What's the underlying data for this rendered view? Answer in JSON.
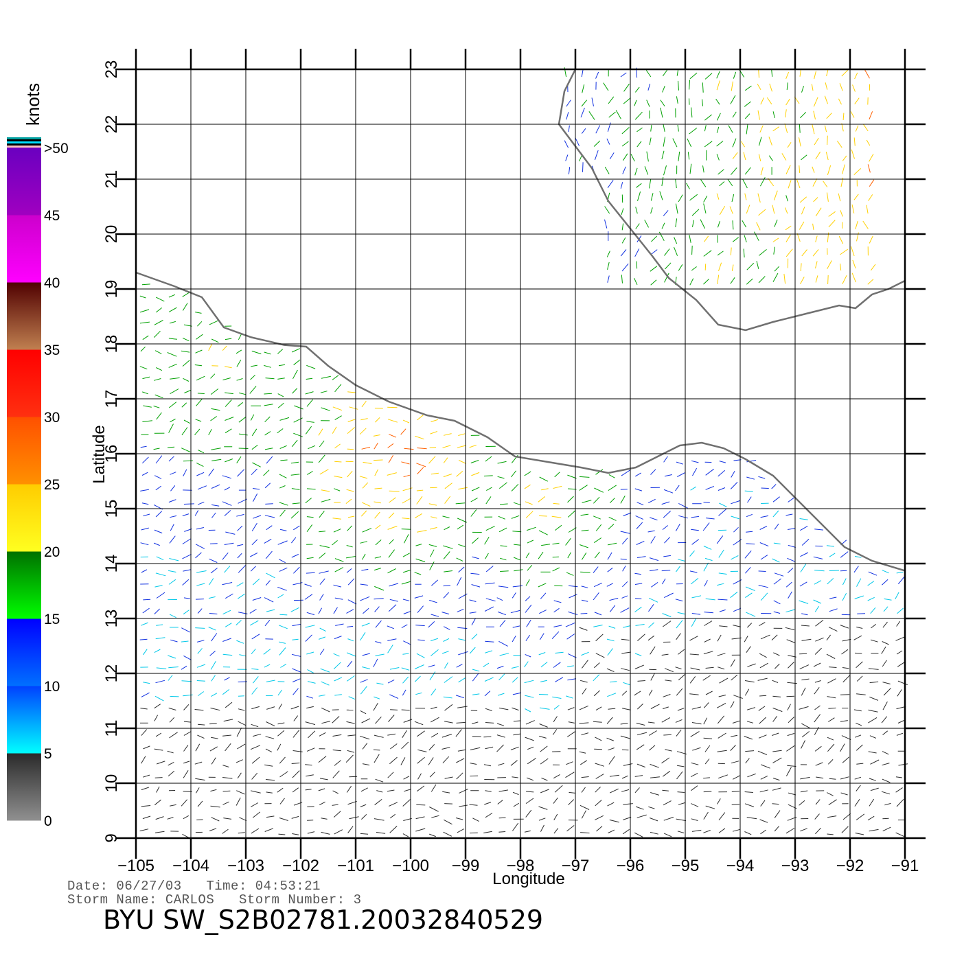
{
  "map": {
    "x_axis_label": "Longitude",
    "y_axis_label": "Latitude",
    "lon_range": [
      -105,
      -91
    ],
    "lat_range": [
      9,
      23
    ],
    "lon_ticks": [
      "-105",
      "-104",
      "-103",
      "-102",
      "-101",
      "-100",
      "-99",
      "-98",
      "-97",
      "-96",
      "-95",
      "-94",
      "-93",
      "-92",
      "-91"
    ],
    "lat_ticks": [
      "9",
      "10",
      "11",
      "12",
      "13",
      "14",
      "15",
      "16",
      "17",
      "18",
      "19",
      "20",
      "21",
      "22",
      "23"
    ],
    "coast_color": "#707070",
    "grid": true
  },
  "colorbar": {
    "unit_label": "knots",
    "tick_labels": [
      "0",
      "5",
      "10",
      "15",
      "20",
      "25",
      "30",
      "35",
      "40",
      "45",
      ">50"
    ],
    "bins": [
      {
        "from": 0,
        "to": 5,
        "top": "#2a2a2a",
        "bottom": "#909090"
      },
      {
        "from": 5,
        "to": 10,
        "top": "#0040ff",
        "bottom": "#00ffff"
      },
      {
        "from": 10,
        "to": 15,
        "top": "#0000ff",
        "bottom": "#0070ff"
      },
      {
        "from": 15,
        "to": 20,
        "top": "#007000",
        "bottom": "#00ff00"
      },
      {
        "from": 20,
        "to": 25,
        "top": "#ffcc00",
        "bottom": "#ffff20"
      },
      {
        "from": 25,
        "to": 30,
        "top": "#ff5000",
        "bottom": "#ff9000"
      },
      {
        "from": 30,
        "to": 35,
        "top": "#ff0000",
        "bottom": "#ff3010"
      },
      {
        "from": 35,
        "to": 40,
        "top": "#500000",
        "bottom": "#c08050"
      },
      {
        "from": 40,
        "to": 45,
        "top": "#cc00cc",
        "bottom": "#ff00ff"
      },
      {
        "from": 45,
        "to": 50,
        "top": "#6a00c0",
        "bottom": "#a000c0"
      }
    ]
  },
  "footer": {
    "date_line": "Date: 06/27/03   Time: 04:53:21",
    "storm_line": "Storm Name: CARLOS   Storm Number: 3",
    "file_name": "BYU SW_S2B02781.20032840529"
  }
}
